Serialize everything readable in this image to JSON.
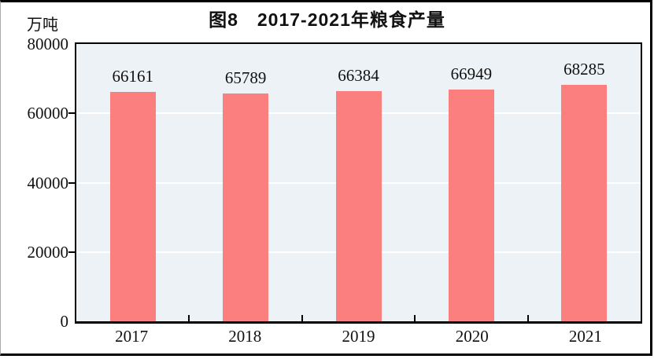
{
  "chart_data": {
    "type": "bar",
    "title": "图8　2017-2021年粮食产量",
    "unit_label": "万吨",
    "categories": [
      "2017",
      "2018",
      "2019",
      "2020",
      "2021"
    ],
    "values": [
      66161,
      65789,
      66384,
      66949,
      68285
    ],
    "value_labels": [
      "66161",
      "65789",
      "66384",
      "66949",
      "68285"
    ],
    "xlabel": "",
    "ylabel": "万吨",
    "ylim": [
      0,
      80000
    ],
    "yticks": [
      80000,
      60000,
      40000,
      20000,
      0
    ],
    "ytick_labels": [
      "80000",
      "60000",
      "40000",
      "20000",
      "0"
    ],
    "grid": "horizontal gridlines at 20000, 40000, 60000",
    "legend": "none",
    "bar_color": "#FC7F7F",
    "plot_bg_color": "#EDF2F6",
    "gridline_color": "#FFFFFF",
    "axis_color": "#000000",
    "text_color": "#111111",
    "frame_border_color": "#000000"
  }
}
